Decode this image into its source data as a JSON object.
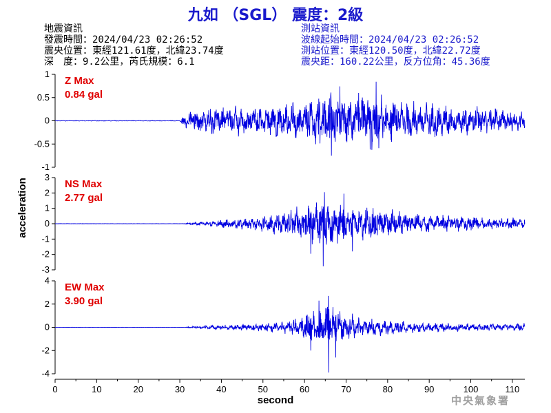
{
  "title": "九如 （SGL） 震度：2級",
  "quake_info": {
    "heading": "地震資訊",
    "origin_time": "發震時間：2024/04/23 02:26:52",
    "epicenter": "震央位置：東經121.61度，北緯23.74度",
    "depth_magnitude": "深　度：9.2公里，芮氏規模：6.1"
  },
  "station_info": {
    "heading": "測站資訊",
    "wave_start": "波線起始時間：2024/04/23 02:26:52",
    "location": "測站位置：東經120.50度，北緯22.72度",
    "distance": "震央距：160.22公里，反方位角：45.36度"
  },
  "agency": "中央氣象署",
  "chart_data": {
    "type": "line",
    "xlabel": "second",
    "ylabel": "acceleration",
    "xlim": [
      0,
      113
    ],
    "x_ticks": [
      0,
      10,
      20,
      30,
      40,
      50,
      60,
      70,
      80,
      90,
      100,
      110
    ],
    "grid": false,
    "line_color": "#0000e0",
    "label_color": "#e00000",
    "panels": [
      {
        "name": "Z",
        "max_label": "Z Max",
        "max_value": "0.84 gal",
        "ylim": [
          -1,
          1
        ],
        "y_ticks": [
          -1,
          -0.5,
          0,
          0.5,
          1
        ],
        "onset": 30.5,
        "envelope": [
          [
            0,
            0.006
          ],
          [
            30,
            0.006
          ],
          [
            31,
            0.15
          ],
          [
            33,
            0.2
          ],
          [
            36,
            0.26
          ],
          [
            40,
            0.3
          ],
          [
            45,
            0.28
          ],
          [
            50,
            0.3
          ],
          [
            55,
            0.34
          ],
          [
            60,
            0.38
          ],
          [
            63,
            0.5
          ],
          [
            66,
            0.55
          ],
          [
            70,
            0.45
          ],
          [
            74,
            0.5
          ],
          [
            77,
            0.58
          ],
          [
            80,
            0.45
          ],
          [
            85,
            0.38
          ],
          [
            90,
            0.34
          ],
          [
            95,
            0.3
          ],
          [
            100,
            0.28
          ],
          [
            105,
            0.26
          ],
          [
            110,
            0.22
          ],
          [
            113,
            0.2
          ]
        ],
        "peaks": [
          [
            66.5,
            -0.75
          ],
          [
            68.5,
            0.74
          ],
          [
            77.2,
            0.84
          ],
          [
            75.8,
            -0.62
          ],
          [
            73,
            0.6
          ]
        ]
      },
      {
        "name": "NS",
        "max_label": "NS Max",
        "max_value": "2.77 gal",
        "ylim": [
          -3,
          3
        ],
        "y_ticks": [
          -3,
          -2,
          -1,
          0,
          1,
          2,
          3
        ],
        "onset": 31,
        "envelope": [
          [
            0,
            0.01
          ],
          [
            31,
            0.01
          ],
          [
            32,
            0.06
          ],
          [
            35,
            0.12
          ],
          [
            38,
            0.18
          ],
          [
            40,
            0.25
          ],
          [
            45,
            0.35
          ],
          [
            50,
            0.45
          ],
          [
            55,
            0.7
          ],
          [
            58,
            1.0
          ],
          [
            61,
            1.25
          ],
          [
            64,
            1.4
          ],
          [
            68,
            1.2
          ],
          [
            72,
            1.1
          ],
          [
            76,
            1.0
          ],
          [
            80,
            0.85
          ],
          [
            85,
            0.75
          ],
          [
            90,
            0.6
          ],
          [
            95,
            0.5
          ],
          [
            100,
            0.42
          ],
          [
            105,
            0.38
          ],
          [
            110,
            0.34
          ],
          [
            113,
            0.3
          ]
        ],
        "peaks": [
          [
            64.5,
            -2.77
          ],
          [
            64.8,
            2.05
          ],
          [
            69.5,
            1.95
          ],
          [
            61.5,
            -1.95
          ],
          [
            71.5,
            -1.8
          ]
        ]
      },
      {
        "name": "EW",
        "max_label": "EW Max",
        "max_value": "3.90 gal",
        "ylim": [
          -4,
          4
        ],
        "y_ticks": [
          -4,
          -2,
          0,
          2,
          4
        ],
        "onset": 31,
        "envelope": [
          [
            0,
            0.01
          ],
          [
            31,
            0.01
          ],
          [
            32,
            0.06
          ],
          [
            35,
            0.12
          ],
          [
            40,
            0.2
          ],
          [
            45,
            0.25
          ],
          [
            50,
            0.35
          ],
          [
            55,
            0.45
          ],
          [
            58,
            0.7
          ],
          [
            61,
            1.1
          ],
          [
            64,
            1.5
          ],
          [
            66,
            1.7
          ],
          [
            68,
            1.3
          ],
          [
            72,
            1.0
          ],
          [
            75,
            0.8
          ],
          [
            80,
            0.6
          ],
          [
            85,
            0.48
          ],
          [
            90,
            0.4
          ],
          [
            95,
            0.36
          ],
          [
            100,
            0.32
          ],
          [
            105,
            0.3
          ],
          [
            110,
            0.3
          ],
          [
            113,
            0.3
          ]
        ],
        "peaks": [
          [
            65.8,
            -3.9
          ],
          [
            65.7,
            2.7
          ],
          [
            63.5,
            2.3
          ],
          [
            67.5,
            -2.6
          ],
          [
            61.5,
            -2.0
          ]
        ]
      }
    ]
  }
}
